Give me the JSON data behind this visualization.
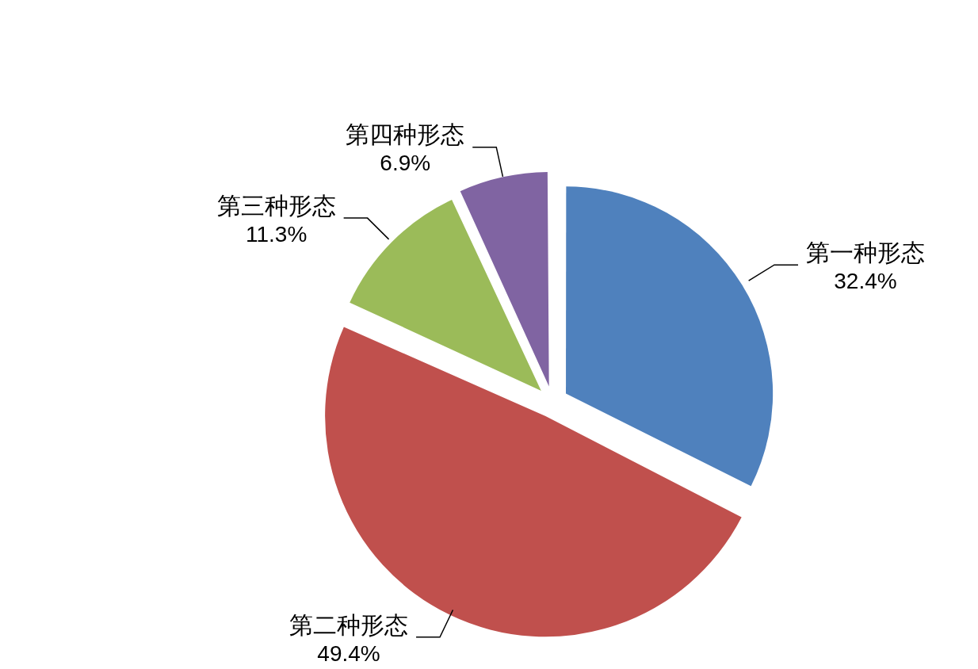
{
  "chart_data": {
    "type": "pie",
    "categories": [
      "第一种形态",
      "第二种形态",
      "第三种形态",
      "第四种形态"
    ],
    "values": [
      32.4,
      49.4,
      11.3,
      6.9
    ],
    "colors": [
      "#4f81bd",
      "#c0504d",
      "#9bbb59",
      "#8064a2"
    ],
    "value_labels": [
      "32.4%",
      "49.4%",
      "11.3%",
      "6.9%"
    ],
    "legend": false
  }
}
